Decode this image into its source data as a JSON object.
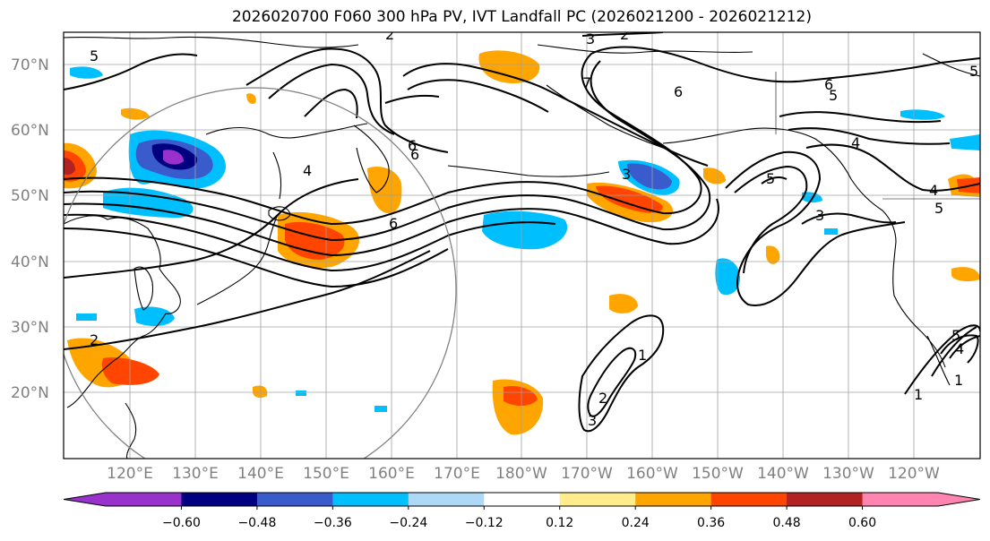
{
  "title": "2026020700 F060 300 hPa PV, IVT Landfall PC (2026021200 - 2026021212)",
  "lat_labels": [
    "70°N",
    "60°N",
    "50°N",
    "40°N",
    "30°N",
    "20°N"
  ],
  "lon_labels": [
    "120°E",
    "130°E",
    "140°E",
    "150°E",
    "160°E",
    "170°E",
    "180°W",
    "170°W",
    "160°W",
    "150°W",
    "140°W",
    "130°W",
    "120°W"
  ],
  "colorbar": {
    "ticks": [
      "−0.60",
      "−0.48",
      "−0.36",
      "−0.24",
      "−0.12",
      "0.12",
      "0.24",
      "0.36",
      "0.48",
      "0.60"
    ],
    "colors": [
      "#9932cc",
      "#000080",
      "#3a5bcc",
      "#00bfff",
      "#add8f6",
      "#ffffff",
      "#ffec8b",
      "#ffa500",
      "#ff4500",
      "#b22222",
      "#ff85b0"
    ]
  },
  "contour_labels": [
    "5",
    "2",
    "3",
    "2",
    "6",
    "6",
    "5",
    "7",
    "4",
    "5",
    "3",
    "4",
    "5",
    "6",
    "1",
    "2",
    "3",
    "1",
    "1",
    "4",
    "6",
    "3",
    "5",
    "4",
    "2",
    "6",
    "5"
  ],
  "colors": {
    "contour": "#000000",
    "grid": "#a0a0a0",
    "coast": "#000000",
    "circle": "#808080"
  }
}
